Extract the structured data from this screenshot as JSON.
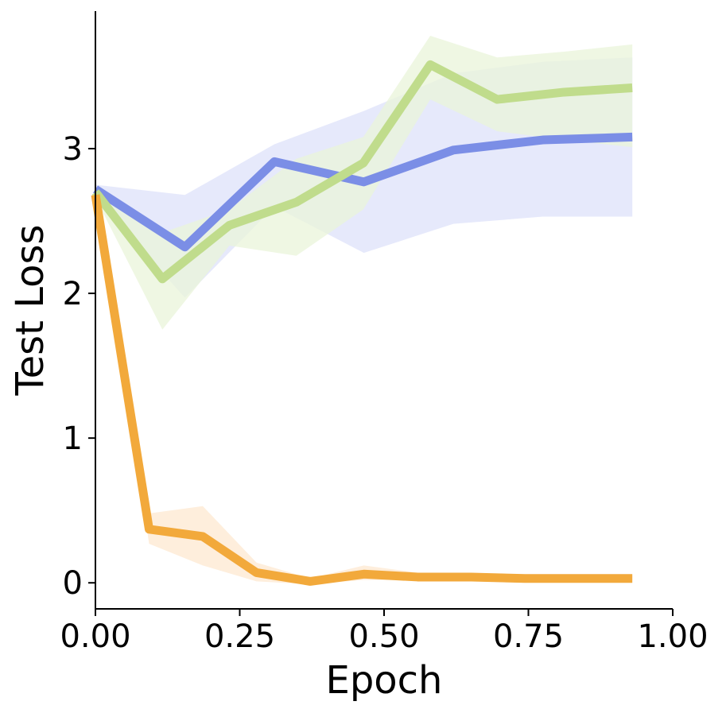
{
  "chart_data": {
    "type": "line",
    "title": "",
    "xlabel": "Epoch",
    "ylabel": "Test Loss",
    "xlim": [
      0,
      1
    ],
    "ylim": [
      -0.18,
      3.95
    ],
    "xticks": [
      0,
      0.25,
      0.5,
      0.75,
      1
    ],
    "xtick_labels": [
      "0.00",
      "0.25",
      "0.50",
      "0.75",
      "1.00"
    ],
    "yticks": [
      0,
      1,
      2,
      3
    ],
    "ytick_labels": [
      "0",
      "1",
      "2",
      "3"
    ],
    "grid": false,
    "legend": "none",
    "series": [
      {
        "color": "#7b8ee6",
        "band_color": "#dde2fa",
        "x": [
          0,
          0.155,
          0.31,
          0.465,
          0.62,
          0.775,
          0.93
        ],
        "y": [
          2.72,
          2.32,
          2.91,
          2.77,
          2.99,
          3.06,
          3.08
        ],
        "y_low": [
          2.66,
          1.97,
          2.6,
          2.28,
          2.48,
          2.53,
          2.53
        ],
        "y_high": [
          2.75,
          2.68,
          3.03,
          3.26,
          3.52,
          3.6,
          3.63
        ]
      },
      {
        "color": "#c0dc8c",
        "band_color": "#e9f4d9",
        "x": [
          0,
          0.116,
          0.232,
          0.348,
          0.464,
          0.58,
          0.696,
          0.812,
          0.93
        ],
        "y": [
          2.7,
          2.1,
          2.47,
          2.63,
          2.9,
          3.58,
          3.34,
          3.39,
          3.42
        ],
        "y_low": [
          2.66,
          1.75,
          2.33,
          2.26,
          2.58,
          3.34,
          3.12,
          3.06,
          3.01
        ],
        "y_high": [
          2.73,
          2.42,
          2.58,
          2.93,
          3.08,
          3.78,
          3.63,
          3.67,
          3.72
        ]
      },
      {
        "color": "#f2a93b",
        "band_color": "#fde8d0",
        "x": [
          0,
          0.093,
          0.186,
          0.279,
          0.372,
          0.465,
          0.558,
          0.651,
          0.744,
          0.837,
          0.93
        ],
        "y": [
          2.68,
          0.37,
          0.32,
          0.07,
          0.01,
          0.06,
          0.04,
          0.04,
          0.03,
          0.03,
          0.03
        ],
        "y_low": [
          2.64,
          0.27,
          0.12,
          0.01,
          -0.01,
          0.02,
          0.02,
          0.02,
          0.02,
          0.02,
          0.02
        ],
        "y_high": [
          2.72,
          0.48,
          0.53,
          0.14,
          0.03,
          0.12,
          0.07,
          0.06,
          0.05,
          0.05,
          0.05
        ]
      }
    ]
  }
}
